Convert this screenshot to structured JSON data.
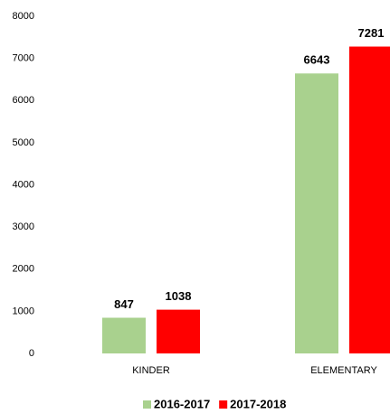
{
  "chart_data": {
    "type": "bar",
    "categories": [
      "KINDER",
      "ELEMENTARY"
    ],
    "series": [
      {
        "name": "2016-2017",
        "color": "#a9d18e",
        "values": [
          847,
          6643
        ]
      },
      {
        "name": "2017-2018",
        "color": "#ff0000",
        "values": [
          1038,
          7281
        ]
      }
    ],
    "ylim": [
      0,
      8000
    ],
    "yticks": [
      0,
      1000,
      2000,
      3000,
      4000,
      5000,
      6000,
      7000,
      8000
    ],
    "grid": false,
    "legend": "bottom"
  }
}
